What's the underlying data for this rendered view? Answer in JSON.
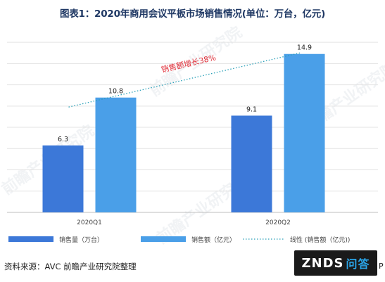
{
  "title": "图表1：2020年商用会议平板市场销售情况(单位：万台，亿元)",
  "source": "资料来源：AVC 前瞻产业研究院整理",
  "logo": {
    "main": "ZNDS",
    "sub": "问答"
  },
  "edge_text": "P",
  "watermark": "前瞻产业研究院",
  "colors": {
    "volume": "#3c78d8",
    "amount": "#4a9fe8",
    "trend": "#2aa0b8",
    "annotation": "#e0303a"
  },
  "chart_data": {
    "type": "bar",
    "categories": [
      "2020Q1",
      "2020Q2"
    ],
    "series": [
      {
        "name": "销售量（万台）",
        "values": [
          6.3,
          9.1
        ]
      },
      {
        "name": "销售额（亿元）",
        "values": [
          10.8,
          14.9
        ]
      }
    ],
    "trendline_name": "线性 (销售额（亿元))",
    "annotation": "销售额增长38%",
    "ylim": [
      0,
      17
    ],
    "grid": true,
    "legend": "bottom"
  }
}
